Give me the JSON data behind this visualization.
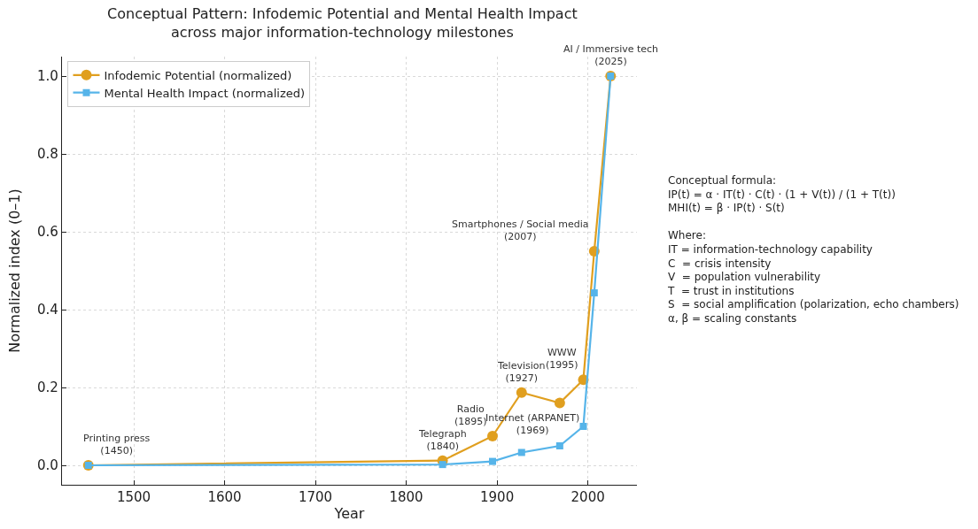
{
  "chart_data": {
    "type": "line",
    "title": "Conceptual Pattern: Infodemic Potential and Mental Health Impact\nacross major information-technology milestones",
    "xlabel": "Year",
    "ylabel": "Normalized index (0–1)",
    "x": [
      1450,
      1840,
      1895,
      1927,
      1969,
      1995,
      2007,
      2025
    ],
    "series": [
      {
        "name": "Infodemic Potential (normalized)",
        "color": "#e09f1f",
        "marker": "circle",
        "values": [
          0,
          0.012,
          0.075,
          0.187,
          0.16,
          0.22,
          0.55,
          1.0
        ]
      },
      {
        "name": "Mental Health Impact (normalized)",
        "color": "#56b4e9",
        "marker": "square",
        "values": [
          0,
          0.002,
          0.01,
          0.033,
          0.05,
          0.1,
          0.443,
          1.0
        ]
      }
    ],
    "xlim": [
      1421,
      2054
    ],
    "xticks": [
      1500,
      1600,
      1700,
      1800,
      1900,
      2000
    ],
    "ylim": [
      -0.05,
      1.05
    ],
    "yticks": [
      {
        "value": 0,
        "label": "0.0"
      },
      0.2,
      0.4,
      0.6,
      0.8,
      {
        "value": 1,
        "label": "1.0"
      }
    ],
    "grid": true,
    "legend": "top left",
    "line_style": "solid",
    "annotations": [
      {
        "text": "Printing press\n(1450)",
        "x": 1450,
        "y": 0
      },
      {
        "text": "Telegraph\n(1840)",
        "x": 1840,
        "y": 0.012
      },
      {
        "text": "Radio\n(1895)",
        "x": 1895,
        "y": 0.075
      },
      {
        "text": "Television\n(1927)",
        "x": 1927,
        "y": 0.187
      },
      {
        "text": "Internet (ARPANET)\n(1969)",
        "x": 1969,
        "y": 0.16
      },
      {
        "text": "WWW\n(1995)",
        "x": 1995,
        "y": 0.22
      },
      {
        "text": "Smartphones / Social media\n(2007)",
        "x": 2007,
        "y": 0.55
      },
      {
        "text": "AI / Immersive tech\n(2025)",
        "x": 2025,
        "y": 1.0
      },
      "Conceptual formula:\nIP(t) = α · IT(t) · C(t) · (1 + V(t)) / (1 + T(t))\nMHI(t) = β · IP(t) · S(t)\n\nWhere:\nIT = information-technology capability\nC  = crisis intensity\nV  = population vulnerability\nT  = trust in institutions\nS  = social amplification (polarization, echo chambers)\nα, β = scaling constants"
    ]
  }
}
